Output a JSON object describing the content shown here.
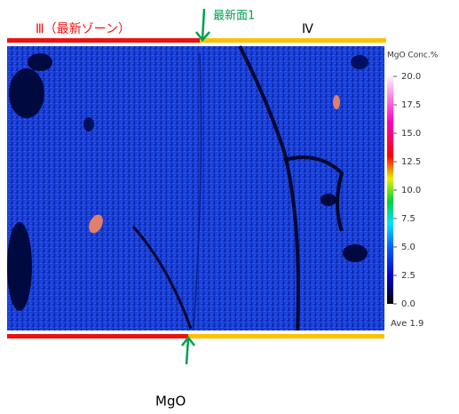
{
  "labels": {
    "zone_left": "Ⅲ（最新ゾーン）",
    "surface": "最新面1",
    "zone_right": "Ⅳ",
    "element": "MgO"
  },
  "colorbar": {
    "title": "MgO Conc.%",
    "ticks": [
      {
        "value": 20,
        "label": "20.0"
      },
      {
        "value": 17.5,
        "label": "17.5"
      },
      {
        "value": 15,
        "label": "15.0"
      },
      {
        "value": 12.5,
        "label": "12.5"
      },
      {
        "value": 10,
        "label": "10.0"
      },
      {
        "value": 7.5,
        "label": "7.5"
      },
      {
        "value": 5,
        "label": "5.0"
      },
      {
        "value": 2.5,
        "label": "2.5"
      },
      {
        "value": 0,
        "label": "0.0"
      }
    ],
    "average": "Ave 1.9"
  }
}
